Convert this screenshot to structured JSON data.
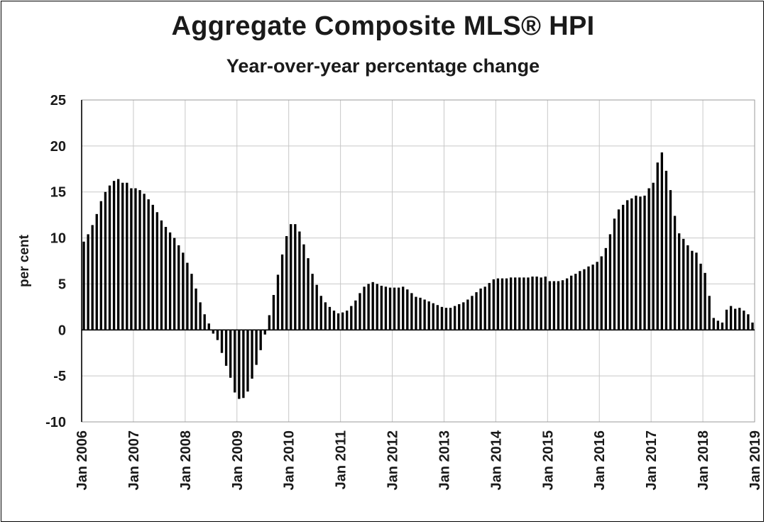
{
  "chart_data": {
    "type": "bar",
    "title": "Aggregate Composite MLS® HPI",
    "subtitle": "Year-over-year percentage change",
    "xlabel": "",
    "ylabel": "per cent",
    "ylim": [
      -10,
      25
    ],
    "y_ticks": [
      25,
      20,
      15,
      10,
      5,
      0,
      -5,
      -10
    ],
    "x_tick_labels": [
      "Jan 2006",
      "Jan 2007",
      "Jan 2008",
      "Jan 2009",
      "Jan 2010",
      "Jan 2011",
      "Jan 2012",
      "Jan 2013",
      "Jan 2014",
      "Jan 2015",
      "Jan 2016",
      "Jan 2017",
      "Jan 2018",
      "Jan 2019"
    ],
    "grid": true,
    "legend": "none",
    "bar_color": "#000000",
    "grid_color": "#c8c8c8",
    "x_start": "Jan 2006",
    "frequency": "monthly",
    "values": [
      9.6,
      10.4,
      11.4,
      12.6,
      14.0,
      15.0,
      15.7,
      16.2,
      16.4,
      16.0,
      16.0,
      15.4,
      15.4,
      15.2,
      14.8,
      14.2,
      13.6,
      12.8,
      11.9,
      11.2,
      10.6,
      10.0,
      9.2,
      8.4,
      7.3,
      6.1,
      4.5,
      3.0,
      1.7,
      0.7,
      -0.4,
      -1.1,
      -2.5,
      -3.9,
      -5.2,
      -6.8,
      -7.5,
      -7.4,
      -6.7,
      -5.3,
      -3.8,
      -2.2,
      -0.5,
      1.6,
      3.8,
      6.0,
      8.2,
      10.2,
      11.5,
      11.5,
      10.7,
      9.3,
      7.8,
      6.1,
      4.9,
      3.7,
      3.0,
      2.5,
      2.1,
      1.8,
      1.9,
      2.1,
      2.6,
      3.2,
      4.0,
      4.7,
      5.0,
      5.2,
      5.0,
      4.8,
      4.7,
      4.6,
      4.6,
      4.6,
      4.7,
      4.4,
      4.0,
      3.6,
      3.5,
      3.3,
      3.1,
      2.9,
      2.7,
      2.5,
      2.4,
      2.4,
      2.6,
      2.8,
      3.0,
      3.3,
      3.7,
      4.1,
      4.5,
      4.7,
      5.1,
      5.5,
      5.6,
      5.6,
      5.6,
      5.7,
      5.7,
      5.7,
      5.7,
      5.7,
      5.8,
      5.8,
      5.7,
      5.8,
      5.3,
      5.3,
      5.3,
      5.4,
      5.6,
      5.9,
      6.1,
      6.4,
      6.6,
      6.9,
      7.1,
      7.4,
      8.0,
      8.9,
      10.4,
      12.1,
      13.1,
      13.6,
      14.1,
      14.3,
      14.6,
      14.5,
      14.6,
      15.4,
      16.0,
      18.2,
      19.3,
      17.3,
      15.2,
      12.4,
      10.5,
      9.9,
      9.2,
      8.6,
      8.4,
      7.2,
      6.2,
      3.7,
      1.3,
      1.0,
      0.8,
      2.2,
      2.6,
      2.3,
      2.4,
      2.1,
      1.7,
      0.8
    ]
  }
}
